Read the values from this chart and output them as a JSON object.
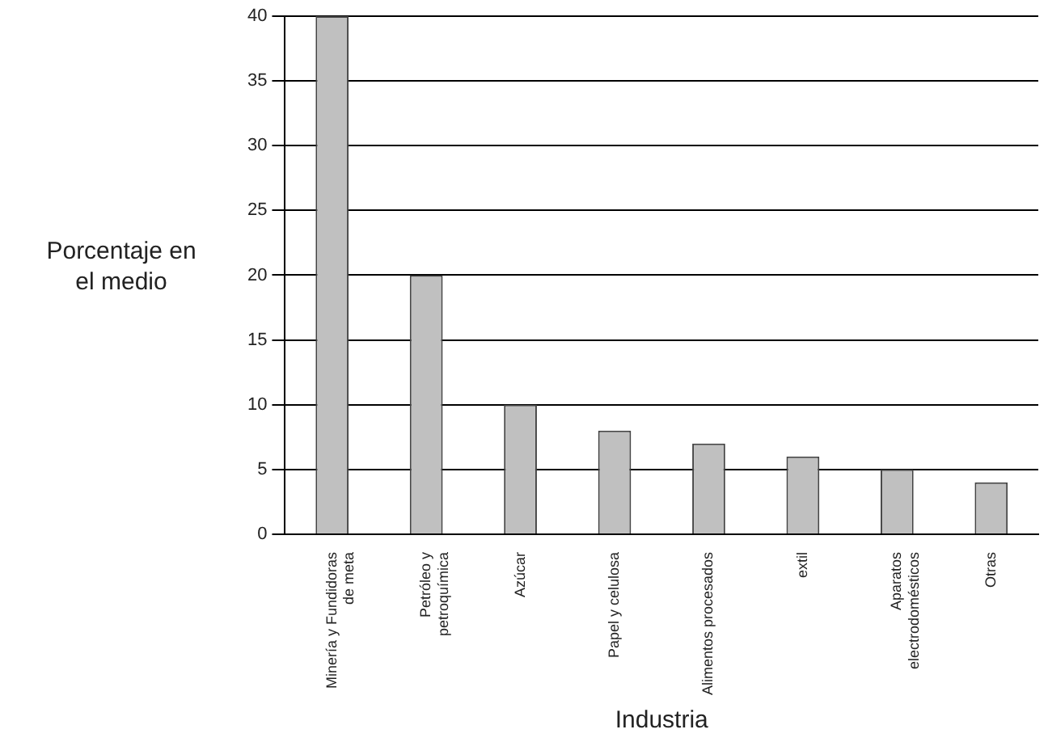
{
  "chart_data": {
    "type": "bar",
    "xlabel": "Industria",
    "ylabel": "Porcentaje en el medio",
    "categories": [
      "Minería y Fundidoras de meta",
      "Petróleo y petroquímica",
      "Azúcar",
      "Papel y celulosa",
      "Alimentos procesados",
      "extil",
      "Aparatos electrodomésticos",
      "Otras"
    ],
    "values": [
      40,
      20,
      10,
      8,
      7,
      6,
      5,
      4
    ],
    "color": "#c0c0c0",
    "ylim": [
      0,
      40
    ],
    "yticks": [
      0,
      5,
      10,
      15,
      20,
      25,
      30,
      35,
      40
    ],
    "grid": "y",
    "legend": false
  }
}
